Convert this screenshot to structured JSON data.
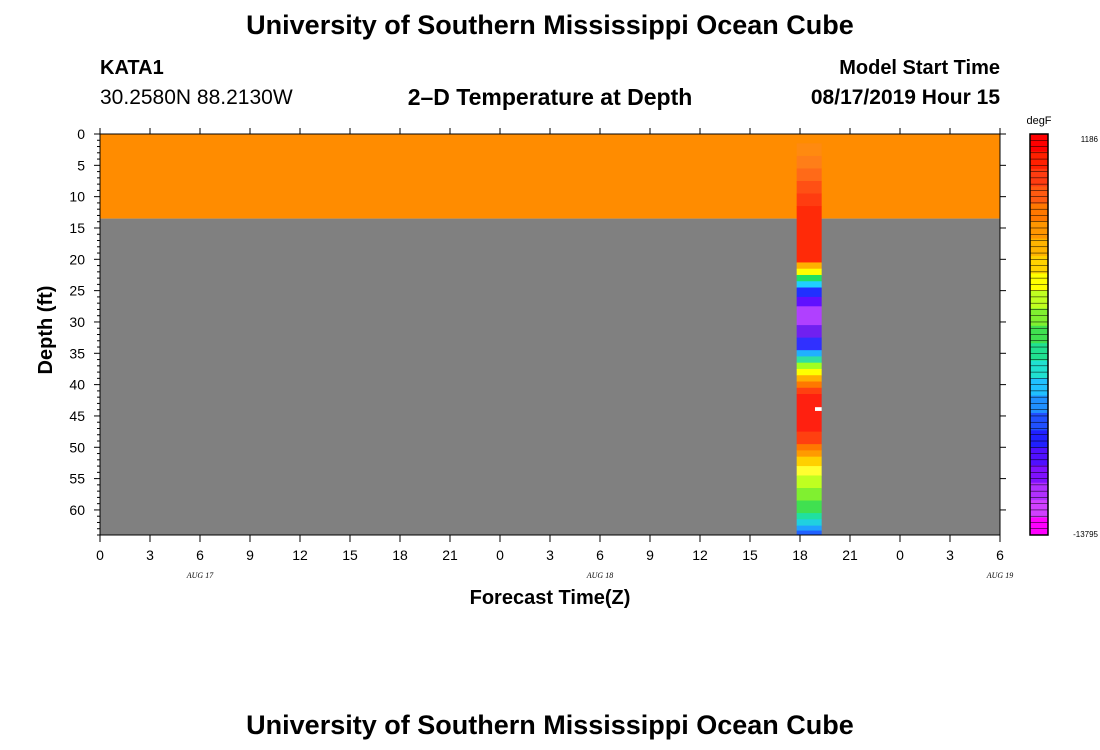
{
  "header": {
    "title": "University of Southern Mississippi Ocean Cube",
    "station": "KATA1",
    "coords": "30.2580N 88.2130W",
    "subtitle": "2–D Temperature at Depth",
    "model_label": "Model Start Time",
    "model_time": "08/17/2019 Hour 15"
  },
  "footer": {
    "title": "University of Southern Mississippi Ocean Cube"
  },
  "chart_data": {
    "type": "heatmap",
    "title": "2–D Temperature at Depth",
    "xlabel": "Forecast Time(Z)",
    "ylabel": "Depth (ft)",
    "x_ticks": [
      "0",
      "3",
      "6",
      "9",
      "12",
      "15",
      "18",
      "21",
      "0",
      "3",
      "6",
      "9",
      "12",
      "15",
      "18",
      "21",
      "0",
      "3",
      "6"
    ],
    "date_labels": [
      {
        "hour_index": 6,
        "label": "AUG 17"
      },
      {
        "hour_index": 30,
        "label": "AUG 18"
      },
      {
        "hour_index": 54,
        "label": "AUG 19"
      }
    ],
    "x_range_hours": [
      0,
      54
    ],
    "y_ticks": [
      0,
      5,
      10,
      15,
      20,
      25,
      30,
      35,
      40,
      45,
      50,
      55,
      60
    ],
    "ylim": [
      0,
      64
    ],
    "background_regions": [
      {
        "name": "surface layer",
        "depth_from": 0,
        "depth_to": 13.5,
        "color": "#ff8c00"
      },
      {
        "name": "below surface",
        "depth_from": 13.5,
        "depth_to": 64,
        "color": "#808080"
      }
    ],
    "profile_column": {
      "hour_from": 41.8,
      "hour_to": 43.3,
      "bands": [
        {
          "from": 0,
          "to": 1.5,
          "color": "#ff8c00"
        },
        {
          "from": 1.5,
          "to": 3.5,
          "color": "#ff8a10"
        },
        {
          "from": 3.5,
          "to": 5.5,
          "color": "#ff7e18"
        },
        {
          "from": 5.5,
          "to": 7.5,
          "color": "#ff6a18"
        },
        {
          "from": 7.5,
          "to": 9.5,
          "color": "#ff5014"
        },
        {
          "from": 9.5,
          "to": 11.5,
          "color": "#ff3c10"
        },
        {
          "from": 11.5,
          "to": 20.5,
          "color": "#ff2a08"
        },
        {
          "from": 20.5,
          "to": 21.5,
          "color": "#ffb000"
        },
        {
          "from": 21.5,
          "to": 22.5,
          "color": "#ffff00"
        },
        {
          "from": 22.5,
          "to": 23.5,
          "color": "#20e060"
        },
        {
          "from": 23.5,
          "to": 24.5,
          "color": "#20d0ff"
        },
        {
          "from": 24.5,
          "to": 26,
          "color": "#2030ff"
        },
        {
          "from": 26,
          "to": 27.5,
          "color": "#6010ff"
        },
        {
          "from": 27.5,
          "to": 30.5,
          "color": "#b040ff"
        },
        {
          "from": 30.5,
          "to": 32.5,
          "color": "#7020f0"
        },
        {
          "from": 32.5,
          "to": 34.5,
          "color": "#3030ff"
        },
        {
          "from": 34.5,
          "to": 35.5,
          "color": "#20b0ff"
        },
        {
          "from": 35.5,
          "to": 36.5,
          "color": "#30e0a0"
        },
        {
          "from": 36.5,
          "to": 37.5,
          "color": "#a0ff20"
        },
        {
          "from": 37.5,
          "to": 38.5,
          "color": "#ffff00"
        },
        {
          "from": 38.5,
          "to": 39.5,
          "color": "#ffb000"
        },
        {
          "from": 39.5,
          "to": 40.5,
          "color": "#ff7800"
        },
        {
          "from": 40.5,
          "to": 41.5,
          "color": "#ff4010"
        },
        {
          "from": 41.5,
          "to": 47.5,
          "color": "#ff2010"
        },
        {
          "from": 47.5,
          "to": 49.5,
          "color": "#ff4010"
        },
        {
          "from": 49.5,
          "to": 50.5,
          "color": "#ff7800"
        },
        {
          "from": 50.5,
          "to": 51.5,
          "color": "#ff9a00"
        },
        {
          "from": 51.5,
          "to": 53,
          "color": "#ffd000"
        },
        {
          "from": 53,
          "to": 54.5,
          "color": "#ffff30"
        },
        {
          "from": 54.5,
          "to": 56.5,
          "color": "#c0ff20"
        },
        {
          "from": 56.5,
          "to": 58.5,
          "color": "#80f030"
        },
        {
          "from": 58.5,
          "to": 60.5,
          "color": "#40e050"
        },
        {
          "from": 60.5,
          "to": 61.5,
          "color": "#20e0a0"
        },
        {
          "from": 61.5,
          "to": 62.5,
          "color": "#20d0e0"
        },
        {
          "from": 62.5,
          "to": 63.3,
          "color": "#20a0ff"
        },
        {
          "from": 63.3,
          "to": 64,
          "color": "#2060ff"
        }
      ],
      "marker": {
        "hour_from": 42.9,
        "hour_to": 43.3,
        "depth_from": 43.6,
        "depth_to": 44.2,
        "color": "#ffffff"
      }
    },
    "colorbar": {
      "unit": "degF",
      "max_label": "1186",
      "min_label": "-13795",
      "colors": [
        "#ff0000",
        "#ff2000",
        "#ff3c10",
        "#ff5a10",
        "#ff7800",
        "#ff9600",
        "#ffb400",
        "#ffd200",
        "#ffff00",
        "#c0ff20",
        "#80f030",
        "#40e050",
        "#20e090",
        "#20e0d0",
        "#20c0ff",
        "#2090ff",
        "#2050ff",
        "#2020ff",
        "#5010ff",
        "#8010ff",
        "#b030ff",
        "#d040ff",
        "#ff00ff"
      ]
    }
  }
}
